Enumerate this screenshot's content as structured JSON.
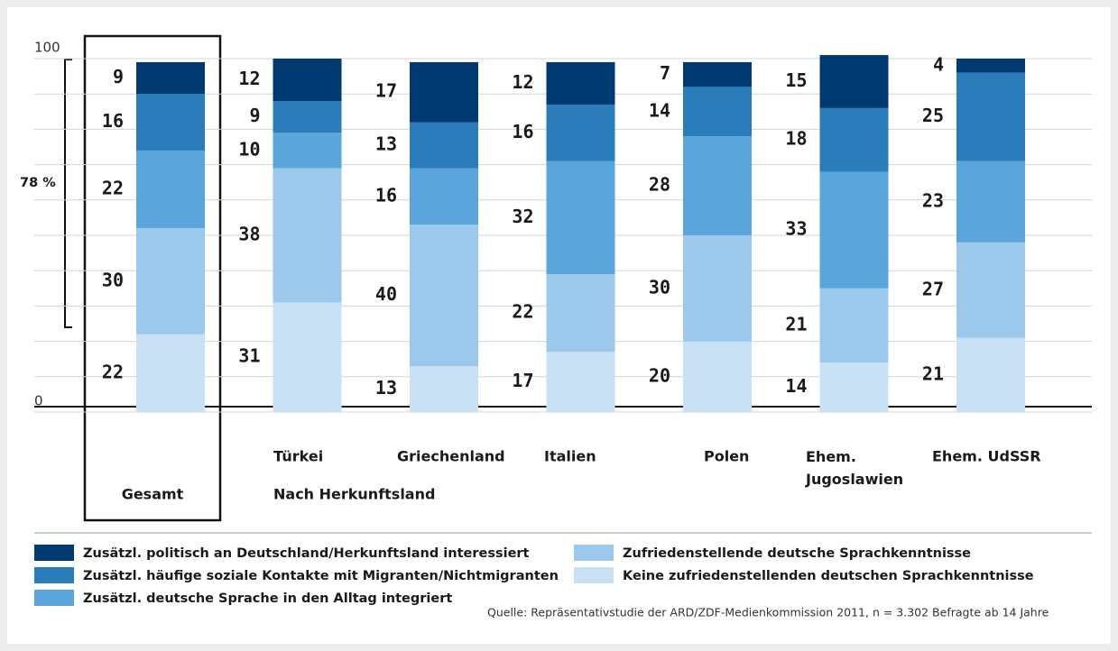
{
  "chart_data": {
    "type": "stacked_bar",
    "categories": [
      "Gesamt",
      "Türkei",
      "Griechenland",
      "Italien",
      "Polen",
      "Ehem. Jugoslawien",
      "Ehem. UdSSR"
    ],
    "x_label": "Nach Herkunftsland",
    "annotation": "78 %",
    "series": [
      {
        "name": "Keine zufriedenstellenden deutschen Sprachkenntnisse",
        "color": "#c9e1f4",
        "values": [
          22,
          31,
          13,
          17,
          20,
          14,
          21
        ]
      },
      {
        "name": "Zufriedenstellende deutsche Sprachkenntnisse",
        "color": "#9cc9eb",
        "values": [
          30,
          38,
          40,
          22,
          30,
          21,
          27
        ]
      },
      {
        "name": "Zusätzl. deutsche Sprache in den Alltag integriert",
        "color": "#5aa6dc",
        "values": [
          22,
          10,
          16,
          32,
          28,
          33,
          23
        ]
      },
      {
        "name": "Zusätzl. häufige soziale Kontakte mit Migranten/Nichtmigranten",
        "color": "#2b7cba",
        "values": [
          16,
          9,
          13,
          16,
          14,
          18,
          25
        ]
      },
      {
        "name": "Zusätzl. politisch an Deutschland/Herkunftsland interessiert",
        "color": "#003a70",
        "values": [
          9,
          12,
          17,
          12,
          7,
          15,
          4
        ]
      }
    ],
    "ylim": [
      0,
      100
    ],
    "yticks": [
      0,
      {
        "value": 10,
        "label": null
      },
      {
        "value": 20,
        "label": null
      },
      {
        "value": 30,
        "label": null
      },
      {
        "value": 40,
        "label": null
      },
      {
        "value": 50,
        "label": null
      },
      {
        "value": 60,
        "label": null
      },
      {
        "value": 70,
        "label": null
      },
      {
        "value": 80,
        "label": null
      },
      {
        "value": 90,
        "label": null
      },
      100
    ],
    "grid": true,
    "source": "Quelle: Repräsentativstudie der ARD/ZDF-Medienkommission 2011, n = 3.302 Befragte ab 14 Jahre"
  }
}
